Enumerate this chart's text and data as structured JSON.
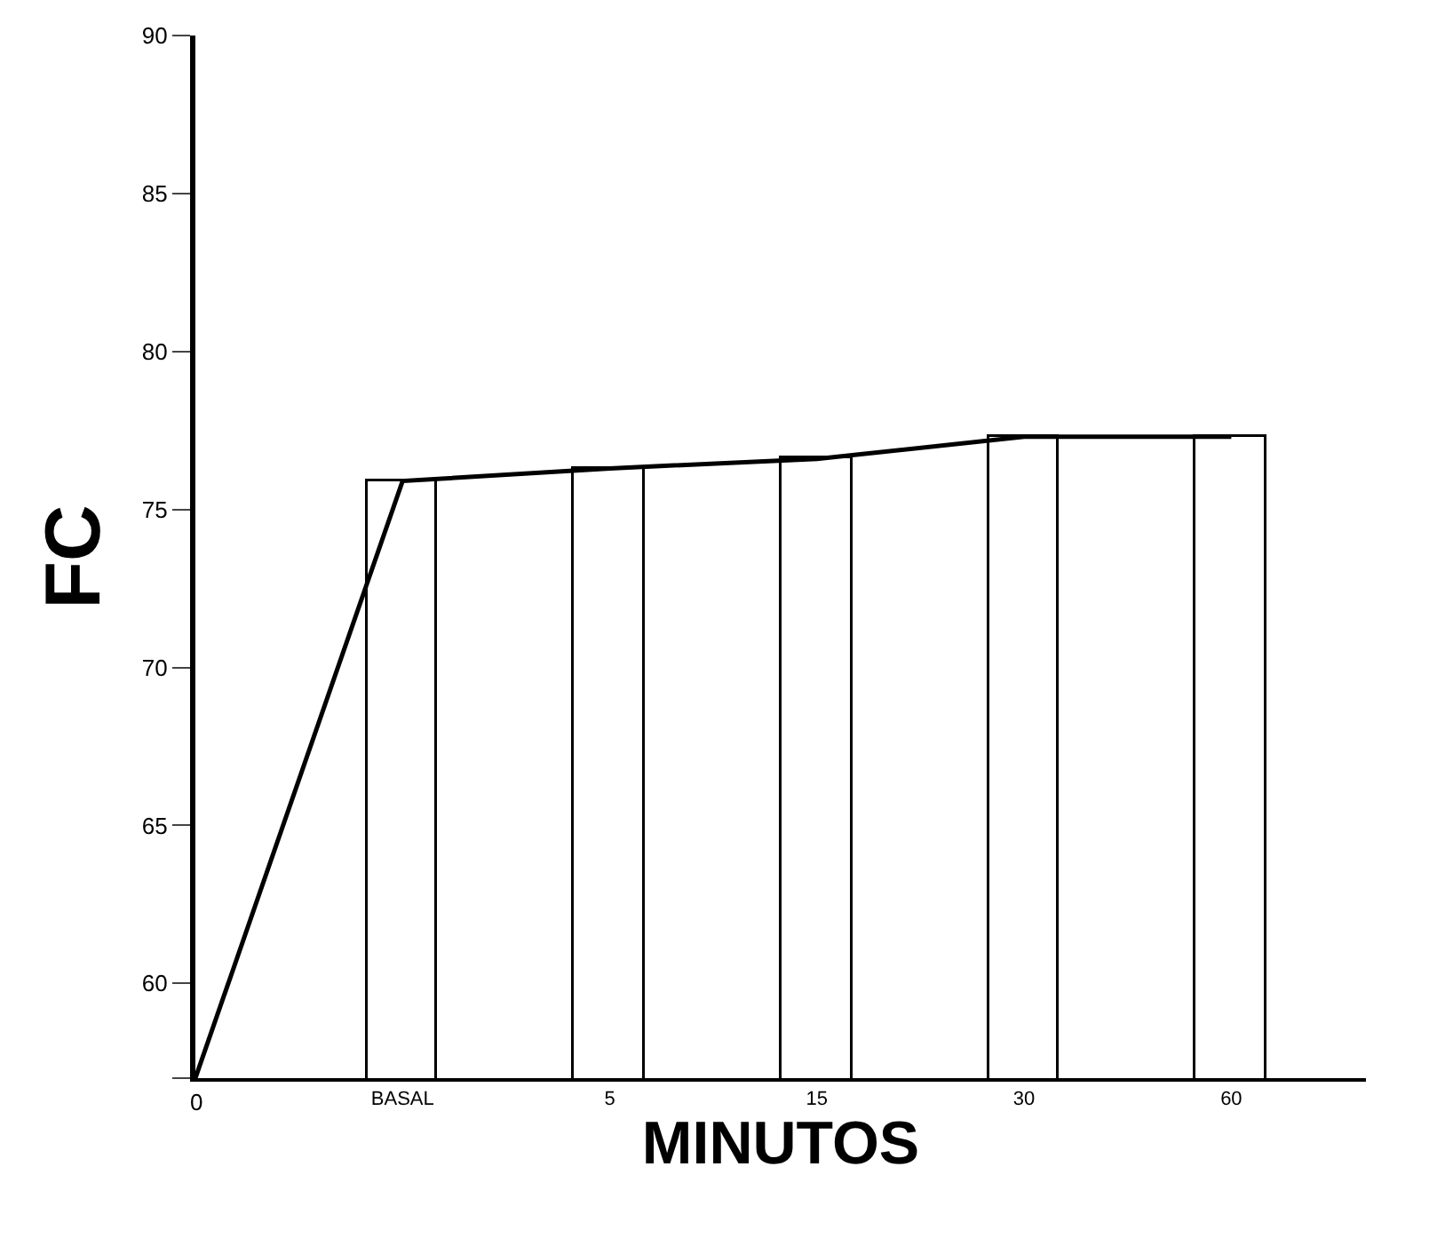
{
  "chart_data": {
    "type": "bar",
    "xlabel": "MINUTOS",
    "ylabel": "FC",
    "categories": [
      null,
      "BASAL",
      "5",
      "15",
      "30",
      "60"
    ],
    "series": [
      {
        "color": "#ffffff",
        "values": [
          null,
          75.9,
          76.3,
          76.6,
          77.3,
          77.3
        ]
      },
      {
        "type": "line",
        "color": "#000000",
        "values": [
          57,
          75.9,
          76.3,
          76.6,
          77.3,
          77.3
        ]
      }
    ],
    "ylim": [
      57,
      90
    ],
    "yticks": [
      {
        "value": 57,
        "label": null
      },
      60,
      65,
      70,
      75,
      80,
      85,
      90
    ],
    "annotations": [
      "0"
    ],
    "grid": false,
    "legend": false,
    "marker": "none",
    "line_style": "solid"
  }
}
